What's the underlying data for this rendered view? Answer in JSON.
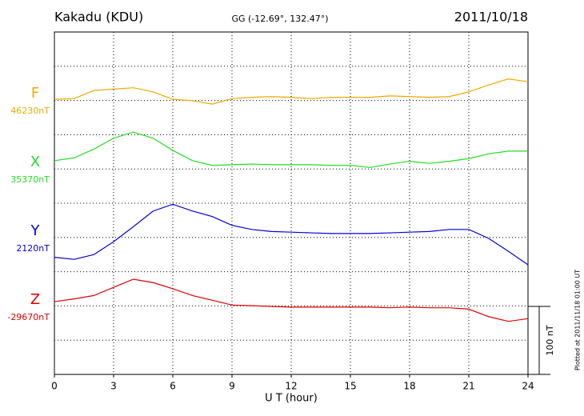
{
  "chart_data": {
    "type": "line",
    "title": "Kakadu (KDU)",
    "subtitle": "GG (-12.69°, 132.47°)",
    "date": "2011/10/18",
    "xlabel": "U T (hour)",
    "footnote": "Plotted at 2011/11/18 01:00 UT",
    "grid": true,
    "xlim": [
      0,
      24
    ],
    "xticks": [
      0,
      3,
      6,
      9,
      12,
      15,
      18,
      21,
      24
    ],
    "scale_bar": {
      "value": 100,
      "label": "100 nT"
    },
    "x": [
      0,
      1,
      2,
      3,
      4,
      5,
      6,
      7,
      8,
      9,
      10,
      11,
      12,
      13,
      14,
      15,
      16,
      17,
      18,
      19,
      20,
      21,
      22,
      23,
      24
    ],
    "series": [
      {
        "name": "F",
        "color": "#f0a800",
        "base": {
          "value": 46230,
          "label": "46230nT"
        },
        "values": [
          46231,
          46232,
          46244,
          46246,
          46248,
          46242,
          46231,
          46229,
          46224,
          46232,
          46234,
          46235,
          46234,
          46232,
          46234,
          46234,
          46234,
          46236,
          46235,
          46234,
          46235,
          46242,
          46252,
          46261,
          46257
        ]
      },
      {
        "name": "X",
        "color": "#22dd22",
        "base": {
          "value": 35370,
          "label": "35370nT"
        },
        "values": [
          35382,
          35386,
          35399,
          35415,
          35424,
          35415,
          35397,
          35382,
          35375,
          35376,
          35377,
          35376,
          35376,
          35376,
          35375,
          35375,
          35372,
          35377,
          35381,
          35378,
          35381,
          35385,
          35392,
          35396,
          35396
        ]
      },
      {
        "name": "Y",
        "color": "#0000dd",
        "base": {
          "value": 2120,
          "label": "2120nT"
        },
        "values": [
          2091,
          2088,
          2095,
          2114,
          2136,
          2159,
          2169,
          2159,
          2151,
          2138,
          2132,
          2129,
          2128,
          2127,
          2126,
          2126,
          2126,
          2127,
          2128,
          2129,
          2132,
          2132,
          2119,
          2100,
          2080
        ]
      },
      {
        "name": "Z",
        "color": "#e00000",
        "base": {
          "value": -29670,
          "label": "-29670nT"
        },
        "values": [
          -29663,
          -29659,
          -29654,
          -29642,
          -29630,
          -29635,
          -29644,
          -29654,
          -29661,
          -29668,
          -29669,
          -29670,
          -29671,
          -29671,
          -29671,
          -29671,
          -29671,
          -29672,
          -29671,
          -29672,
          -29672,
          -29674,
          -29685,
          -29692,
          -29688
        ]
      }
    ]
  }
}
